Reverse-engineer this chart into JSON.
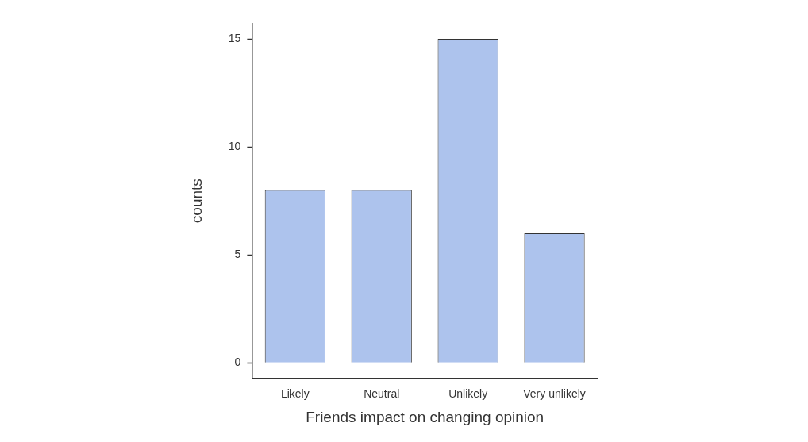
{
  "chart_data": {
    "type": "bar",
    "xlabel": "Friends impact on changing opinion",
    "ylabel": "counts",
    "categories": [
      "Likely",
      "Neutral",
      "Unlikely",
      "Very unlikely"
    ],
    "values": [
      8,
      8,
      15,
      6
    ],
    "color": "#adc3ed",
    "ylim": [
      -0.7,
      15.7
    ],
    "yticks": [
      0,
      5,
      10,
      15
    ],
    "grid": false,
    "legend": false
  }
}
